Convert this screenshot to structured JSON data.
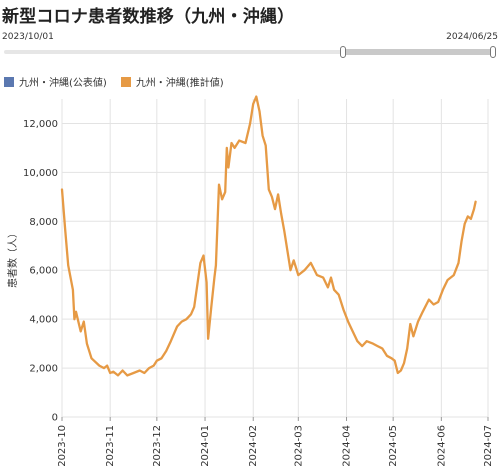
{
  "title": "新型コロナ患者数推移（九州・沖縄）",
  "range": {
    "start": "2023/10/01",
    "end": "2024/06/25"
  },
  "legend": [
    {
      "label": "九州・沖縄(公表値)",
      "color": "#5b78b0"
    },
    {
      "label": "九州・沖縄(推計値)",
      "color": "#e69a45"
    }
  ],
  "chart_data": {
    "type": "line",
    "ylabel": "患者数（人）",
    "ylim": [
      0,
      13000
    ],
    "yticks": [
      0,
      2000,
      4000,
      6000,
      8000,
      10000,
      12000
    ],
    "ytick_labels": [
      "0",
      "2,000",
      "4,000",
      "6,000",
      "8,000",
      "10,000",
      "12,000"
    ],
    "xlim": [
      "2023-10-01",
      "2024-07-01"
    ],
    "xticks": [
      "2023-10-01",
      "2023-11-01",
      "2023-12-01",
      "2024-01-01",
      "2024-02-01",
      "2024-03-01",
      "2024-04-01",
      "2024-05-01",
      "2024-06-01",
      "2024-07-01"
    ],
    "xtick_labels": [
      "2023-10",
      "2023-11",
      "2023-12",
      "2024-01",
      "2024-02",
      "2024-03",
      "2024-04",
      "2024-05",
      "2024-06",
      "2024-07"
    ],
    "grid": true,
    "series": [
      {
        "name": "九州・沖縄(推計値)",
        "color": "#e69a45",
        "points": [
          [
            "2023-10-01",
            9300
          ],
          [
            "2023-10-03",
            7700
          ],
          [
            "2023-10-05",
            6200
          ],
          [
            "2023-10-08",
            5200
          ],
          [
            "2023-10-09",
            4000
          ],
          [
            "2023-10-10",
            4300
          ],
          [
            "2023-10-13",
            3500
          ],
          [
            "2023-10-15",
            3900
          ],
          [
            "2023-10-17",
            3000
          ],
          [
            "2023-10-20",
            2400
          ],
          [
            "2023-10-25",
            2100
          ],
          [
            "2023-10-28",
            2000
          ],
          [
            "2023-10-30",
            2100
          ],
          [
            "2023-11-01",
            1800
          ],
          [
            "2023-11-03",
            1850
          ],
          [
            "2023-11-06",
            1700
          ],
          [
            "2023-11-09",
            1900
          ],
          [
            "2023-11-12",
            1700
          ],
          [
            "2023-11-16",
            1800
          ],
          [
            "2023-11-20",
            1900
          ],
          [
            "2023-11-23",
            1800
          ],
          [
            "2023-11-26",
            2000
          ],
          [
            "2023-11-29",
            2100
          ],
          [
            "2023-12-01",
            2300
          ],
          [
            "2023-12-04",
            2400
          ],
          [
            "2023-12-07",
            2700
          ],
          [
            "2023-12-10",
            3100
          ],
          [
            "2023-12-14",
            3700
          ],
          [
            "2023-12-17",
            3900
          ],
          [
            "2023-12-20",
            4000
          ],
          [
            "2023-12-23",
            4200
          ],
          [
            "2023-12-25",
            4500
          ],
          [
            "2023-12-27",
            5400
          ],
          [
            "2023-12-29",
            6300
          ],
          [
            "2023-12-31",
            6600
          ],
          [
            "2024-01-02",
            5500
          ],
          [
            "2024-01-03",
            3200
          ],
          [
            "2024-01-05",
            4500
          ],
          [
            "2024-01-07",
            5700
          ],
          [
            "2024-01-08",
            6200
          ],
          [
            "2024-01-10",
            9500
          ],
          [
            "2024-01-12",
            8900
          ],
          [
            "2024-01-14",
            9200
          ],
          [
            "2024-01-15",
            11000
          ],
          [
            "2024-01-16",
            10200
          ],
          [
            "2024-01-18",
            11200
          ],
          [
            "2024-01-20",
            11000
          ],
          [
            "2024-01-23",
            11300
          ],
          [
            "2024-01-27",
            11200
          ],
          [
            "2024-01-30",
            12000
          ],
          [
            "2024-02-01",
            12800
          ],
          [
            "2024-02-03",
            13100
          ],
          [
            "2024-02-05",
            12500
          ],
          [
            "2024-02-07",
            11500
          ],
          [
            "2024-02-09",
            11100
          ],
          [
            "2024-02-11",
            9300
          ],
          [
            "2024-02-13",
            9000
          ],
          [
            "2024-02-15",
            8500
          ],
          [
            "2024-02-17",
            9100
          ],
          [
            "2024-02-19",
            8300
          ],
          [
            "2024-02-21",
            7600
          ],
          [
            "2024-02-23",
            6800
          ],
          [
            "2024-02-25",
            6000
          ],
          [
            "2024-02-27",
            6400
          ],
          [
            "2024-03-01",
            5800
          ],
          [
            "2024-03-05",
            6000
          ],
          [
            "2024-03-09",
            6300
          ],
          [
            "2024-03-13",
            5800
          ],
          [
            "2024-03-17",
            5700
          ],
          [
            "2024-03-20",
            5300
          ],
          [
            "2024-03-22",
            5700
          ],
          [
            "2024-03-24",
            5200
          ],
          [
            "2024-03-27",
            5000
          ],
          [
            "2024-03-30",
            4400
          ],
          [
            "2024-04-02",
            3900
          ],
          [
            "2024-04-05",
            3500
          ],
          [
            "2024-04-08",
            3100
          ],
          [
            "2024-04-11",
            2900
          ],
          [
            "2024-04-14",
            3100
          ],
          [
            "2024-04-18",
            3000
          ],
          [
            "2024-04-21",
            2900
          ],
          [
            "2024-04-24",
            2800
          ],
          [
            "2024-04-27",
            2500
          ],
          [
            "2024-04-30",
            2400
          ],
          [
            "2024-05-02",
            2300
          ],
          [
            "2024-05-04",
            1800
          ],
          [
            "2024-05-06",
            1900
          ],
          [
            "2024-05-08",
            2200
          ],
          [
            "2024-05-10",
            2800
          ],
          [
            "2024-05-12",
            3800
          ],
          [
            "2024-05-14",
            3300
          ],
          [
            "2024-05-17",
            3900
          ],
          [
            "2024-05-20",
            4300
          ],
          [
            "2024-05-24",
            4800
          ],
          [
            "2024-05-27",
            4600
          ],
          [
            "2024-05-30",
            4700
          ],
          [
            "2024-06-02",
            5200
          ],
          [
            "2024-06-05",
            5600
          ],
          [
            "2024-06-09",
            5800
          ],
          [
            "2024-06-12",
            6300
          ],
          [
            "2024-06-14",
            7200
          ],
          [
            "2024-06-16",
            7900
          ],
          [
            "2024-06-18",
            8200
          ],
          [
            "2024-06-20",
            8100
          ],
          [
            "2024-06-22",
            8500
          ],
          [
            "2024-06-23",
            8800
          ]
        ]
      }
    ]
  }
}
